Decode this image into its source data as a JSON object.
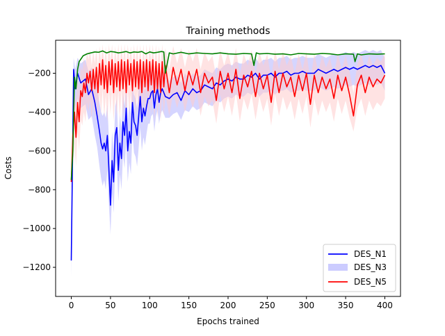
{
  "chart_data": {
    "type": "line",
    "title": "Training methods",
    "xlabel": "Epochs trained",
    "ylabel": "Costs",
    "xlim": [
      -20,
      420
    ],
    "ylim": [
      -1350,
      -30
    ],
    "xticks": [
      0,
      50,
      100,
      150,
      200,
      250,
      300,
      350,
      400
    ],
    "yticks": [
      -1200,
      -1000,
      -800,
      -600,
      -400,
      -200
    ],
    "legend_position": "lower right",
    "legend": [
      {
        "name": "DES_N1",
        "style": "line",
        "color": "#0000ff"
      },
      {
        "name": "DES_N3",
        "style": "band",
        "color": "#ccccff"
      },
      {
        "name": "DES_N5",
        "style": "line",
        "color": "#ff0000"
      }
    ],
    "series": [
      {
        "name": "DES_N1",
        "color": "#0000ff",
        "band_color": "#b3b3ff",
        "x": [
          0,
          3,
          5,
          8,
          12,
          18,
          22,
          26,
          30,
          33,
          36,
          38,
          40,
          42,
          44,
          46,
          48,
          50,
          52,
          54,
          56,
          58,
          60,
          62,
          64,
          66,
          68,
          70,
          72,
          74,
          76,
          78,
          80,
          82,
          84,
          86,
          88,
          90,
          92,
          94,
          96,
          98,
          100,
          102,
          104,
          106,
          108,
          110,
          112,
          114,
          116,
          118,
          120,
          125,
          130,
          135,
          140,
          145,
          150,
          155,
          160,
          165,
          170,
          175,
          180,
          185,
          190,
          195,
          200,
          205,
          210,
          215,
          220,
          225,
          230,
          235,
          240,
          245,
          250,
          255,
          260,
          265,
          270,
          275,
          280,
          285,
          290,
          295,
          300,
          305,
          310,
          315,
          320,
          325,
          330,
          335,
          340,
          345,
          350,
          355,
          360,
          365,
          370,
          375,
          380,
          385,
          390,
          395,
          400
        ],
        "y": [
          -1165,
          -180,
          -280,
          -200,
          -250,
          -230,
          -310,
          -280,
          -350,
          -420,
          -500,
          -560,
          -590,
          -560,
          -600,
          -520,
          -700,
          -880,
          -650,
          -760,
          -520,
          -480,
          -700,
          -560,
          -640,
          -450,
          -520,
          -380,
          -600,
          -500,
          -560,
          -350,
          -450,
          -470,
          -520,
          -420,
          -320,
          -450,
          -380,
          -420,
          -370,
          -330,
          -330,
          -300,
          -290,
          -380,
          -310,
          -280,
          -350,
          -300,
          -280,
          -300,
          -320,
          -330,
          -310,
          -300,
          -340,
          -290,
          -310,
          -280,
          -300,
          -290,
          -260,
          -270,
          -280,
          -250,
          -260,
          -240,
          -230,
          -240,
          -220,
          -230,
          -230,
          -210,
          -220,
          -200,
          -230,
          -210,
          -210,
          -200,
          -220,
          -200,
          -200,
          -190,
          -210,
          -200,
          -200,
          -190,
          -200,
          -200,
          -200,
          -180,
          -190,
          -200,
          -190,
          -180,
          -190,
          -180,
          -170,
          -180,
          -170,
          -180,
          -170,
          -160,
          -170,
          -160,
          -170,
          -160,
          -200
        ],
        "band_lower": [
          -1250,
          -300,
          -400,
          -330,
          -380,
          -360,
          -440,
          -420,
          -520,
          -580,
          -680,
          -740,
          -780,
          -750,
          -800,
          -700,
          -880,
          -1030,
          -820,
          -920,
          -700,
          -660,
          -860,
          -720,
          -800,
          -620,
          -690,
          -550,
          -760,
          -660,
          -720,
          -510,
          -610,
          -630,
          -680,
          -580,
          -480,
          -600,
          -530,
          -570,
          -510,
          -460,
          -460,
          -420,
          -410,
          -500,
          -420,
          -390,
          -460,
          -410,
          -390,
          -410,
          -430,
          -430,
          -410,
          -400,
          -440,
          -390,
          -400,
          -370,
          -390,
          -380,
          -350,
          -360,
          -370,
          -340,
          -350,
          -330,
          -320,
          -330,
          -310,
          -320,
          -320,
          -300,
          -310,
          -290,
          -320,
          -300,
          -300,
          -290,
          -310,
          -290,
          -290,
          -280,
          -300,
          -290,
          -290,
          -280,
          -290,
          -290,
          -290,
          -270,
          -280,
          -290,
          -280,
          -270,
          -280,
          -270,
          -260,
          -270,
          -260,
          -270,
          -260,
          -250,
          -260,
          -250,
          -260,
          -250,
          -290
        ],
        "band_upper": [
          -1080,
          -120,
          -180,
          -120,
          -150,
          -130,
          -190,
          -170,
          -220,
          -280,
          -350,
          -400,
          -420,
          -400,
          -430,
          -360,
          -540,
          -720,
          -500,
          -600,
          -370,
          -330,
          -540,
          -410,
          -480,
          -300,
          -370,
          -240,
          -450,
          -360,
          -410,
          -220,
          -310,
          -330,
          -380,
          -280,
          -190,
          -310,
          -250,
          -290,
          -240,
          -210,
          -210,
          -190,
          -180,
          -270,
          -210,
          -180,
          -250,
          -200,
          -180,
          -200,
          -220,
          -240,
          -220,
          -210,
          -250,
          -200,
          -230,
          -200,
          -220,
          -210,
          -180,
          -190,
          -200,
          -170,
          -180,
          -160,
          -150,
          -160,
          -140,
          -150,
          -150,
          -130,
          -140,
          -120,
          -150,
          -130,
          -130,
          -120,
          -140,
          -120,
          -120,
          -110,
          -130,
          -120,
          -120,
          -110,
          -120,
          -120,
          -120,
          -100,
          -110,
          -120,
          -110,
          -100,
          -110,
          -100,
          -90,
          -100,
          -90,
          -100,
          -90,
          -80,
          -90,
          -80,
          -90,
          -80,
          -120
        ]
      },
      {
        "name": "DES_N5",
        "color": "#ff0000",
        "band_color": "#ffcccc",
        "x": [
          0,
          2,
          4,
          6,
          8,
          10,
          12,
          14,
          16,
          18,
          20,
          22,
          24,
          26,
          28,
          30,
          32,
          34,
          36,
          38,
          40,
          42,
          44,
          46,
          48,
          50,
          52,
          54,
          56,
          58,
          60,
          62,
          64,
          66,
          68,
          70,
          72,
          74,
          76,
          78,
          80,
          82,
          84,
          86,
          88,
          90,
          92,
          94,
          96,
          98,
          100,
          102,
          104,
          106,
          108,
          110,
          112,
          114,
          116,
          118,
          120,
          125,
          130,
          135,
          140,
          145,
          150,
          155,
          160,
          165,
          170,
          175,
          180,
          185,
          190,
          195,
          200,
          205,
          210,
          215,
          220,
          225,
          230,
          235,
          240,
          245,
          250,
          255,
          260,
          265,
          270,
          275,
          280,
          285,
          290,
          295,
          300,
          305,
          310,
          315,
          320,
          325,
          330,
          335,
          340,
          345,
          350,
          355,
          360,
          365,
          370,
          375,
          380,
          385,
          390,
          395,
          400
        ],
        "y": [
          -760,
          -520,
          -400,
          -530,
          -350,
          -450,
          -290,
          -320,
          -250,
          -300,
          -200,
          -250,
          -190,
          -290,
          -180,
          -280,
          -170,
          -300,
          -150,
          -260,
          -130,
          -280,
          -160,
          -300,
          -140,
          -260,
          -130,
          -300,
          -150,
          -270,
          -140,
          -290,
          -130,
          -280,
          -140,
          -300,
          -130,
          -260,
          -150,
          -290,
          -130,
          -270,
          -140,
          -280,
          -130,
          -300,
          -140,
          -270,
          -130,
          -290,
          -140,
          -260,
          -130,
          -300,
          -140,
          -280,
          -150,
          -300,
          -140,
          -270,
          -160,
          -300,
          -170,
          -260,
          -180,
          -290,
          -190,
          -260,
          -180,
          -300,
          -200,
          -250,
          -220,
          -340,
          -190,
          -280,
          -200,
          -300,
          -180,
          -330,
          -210,
          -270,
          -190,
          -320,
          -200,
          -280,
          -210,
          -350,
          -190,
          -300,
          -200,
          -270,
          -220,
          -320,
          -210,
          -290,
          -200,
          -360,
          -210,
          -300,
          -220,
          -280,
          -230,
          -330,
          -210,
          -290,
          -220,
          -310,
          -420,
          -260,
          -210,
          -300,
          -220,
          -270,
          -230,
          -250,
          -210
        ],
        "band_lower": [
          -800,
          -700,
          -560,
          -680,
          -500,
          -600,
          -440,
          -470,
          -400,
          -450,
          -350,
          -400,
          -340,
          -440,
          -330,
          -430,
          -320,
          -450,
          -300,
          -410,
          -280,
          -430,
          -310,
          -450,
          -290,
          -410,
          -280,
          -450,
          -300,
          -420,
          -290,
          -440,
          -280,
          -430,
          -290,
          -450,
          -280,
          -410,
          -300,
          -440,
          -280,
          -420,
          -290,
          -430,
          -280,
          -450,
          -290,
          -420,
          -280,
          -440,
          -290,
          -410,
          -280,
          -450,
          -290,
          -430,
          -300,
          -450,
          -290,
          -420,
          -310,
          -420,
          -300,
          -380,
          -300,
          -400,
          -310,
          -380,
          -300,
          -420,
          -320,
          -370,
          -340,
          -460,
          -310,
          -400,
          -320,
          -420,
          -300,
          -450,
          -330,
          -390,
          -310,
          -440,
          -320,
          -400,
          -330,
          -470,
          -310,
          -420,
          -320,
          -390,
          -340,
          -440,
          -330,
          -410,
          -320,
          -480,
          -330,
          -420,
          -340,
          -400,
          -350,
          -450,
          -330,
          -410,
          -340,
          -430,
          -500,
          -380,
          -330,
          -420,
          -340,
          -390,
          -350,
          -370,
          -330
        ],
        "band_upper": [
          -700,
          -380,
          -260,
          -380,
          -220,
          -300,
          -160,
          -190,
          -120,
          -170,
          -90,
          -130,
          -80,
          -160,
          -80,
          -150,
          -70,
          -170,
          -60,
          -140,
          -50,
          -160,
          -60,
          -170,
          -50,
          -140,
          -50,
          -170,
          -60,
          -150,
          -50,
          -160,
          -50,
          -150,
          -50,
          -170,
          -50,
          -140,
          -60,
          -160,
          -50,
          -150,
          -50,
          -160,
          -50,
          -170,
          -50,
          -150,
          -50,
          -160,
          -50,
          -140,
          -50,
          -170,
          -50,
          -160,
          -60,
          -170,
          -50,
          -150,
          -70,
          -180,
          -60,
          -150,
          -70,
          -170,
          -80,
          -140,
          -70,
          -180,
          -90,
          -140,
          -110,
          -220,
          -80,
          -160,
          -90,
          -180,
          -70,
          -210,
          -100,
          -160,
          -80,
          -200,
          -90,
          -160,
          -100,
          -230,
          -80,
          -180,
          -90,
          -160,
          -110,
          -200,
          -100,
          -180,
          -90,
          -240,
          -100,
          -190,
          -110,
          -170,
          -120,
          -210,
          -100,
          -180,
          -110,
          -190,
          -300,
          -150,
          -100,
          -190,
          -110,
          -160,
          -120,
          -140,
          -100
        ]
      },
      {
        "name": "",
        "color": "#008000",
        "x": [
          0,
          2,
          4,
          6,
          8,
          10,
          15,
          20,
          25,
          30,
          35,
          40,
          45,
          50,
          55,
          60,
          65,
          70,
          75,
          80,
          85,
          90,
          95,
          100,
          105,
          110,
          115,
          118,
          120,
          125,
          130,
          140,
          150,
          160,
          170,
          180,
          190,
          200,
          210,
          220,
          230,
          233,
          236,
          240,
          250,
          260,
          270,
          280,
          290,
          300,
          310,
          320,
          330,
          340,
          350,
          360,
          362,
          365,
          370,
          380,
          390,
          400
        ],
        "y": [
          -750,
          -600,
          -220,
          -280,
          -180,
          -140,
          -110,
          -100,
          -95,
          -90,
          -92,
          -85,
          -95,
          -88,
          -90,
          -95,
          -92,
          -88,
          -95,
          -90,
          -92,
          -88,
          -100,
          -90,
          -95,
          -92,
          -88,
          -90,
          -200,
          -95,
          -100,
          -92,
          -100,
          -95,
          -98,
          -100,
          -95,
          -100,
          -102,
          -98,
          -100,
          -160,
          -95,
          -100,
          -98,
          -102,
          -100,
          -105,
          -98,
          -100,
          -102,
          -98,
          -100,
          -105,
          -100,
          -102,
          -140,
          -100,
          -105,
          -100,
          -102,
          -100
        ]
      }
    ]
  }
}
